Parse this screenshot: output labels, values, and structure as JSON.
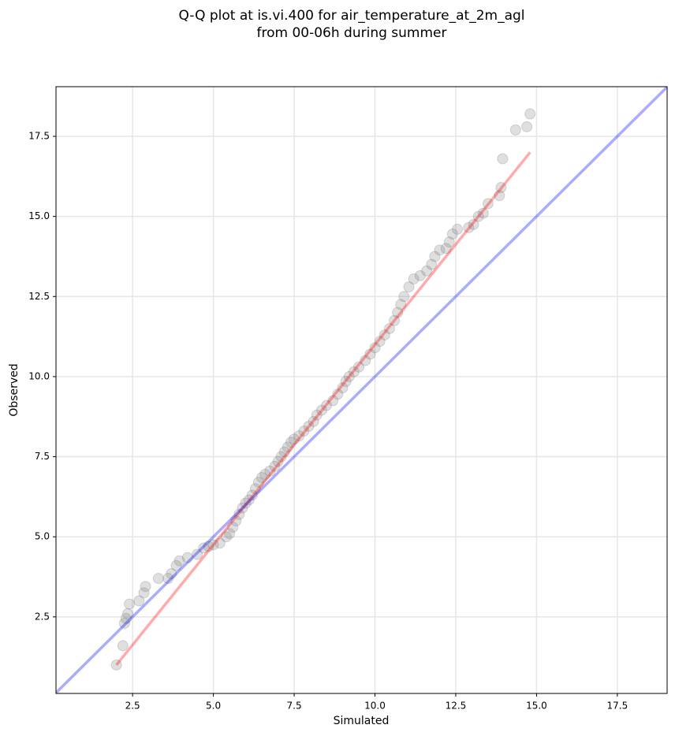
{
  "chart_data": {
    "type": "scatter",
    "title": [
      "Q-Q plot at is.vi.400 for air_temperature_at_2m_agl",
      "from 00-06h during summer"
    ],
    "x_label": "Simulated",
    "y_label": "Observed",
    "xlim": [
      0.13,
      19.04
    ],
    "ylim": [
      0.11,
      19.05
    ],
    "xticks": [
      2.5,
      {
        "value": 5,
        "label": "5.0"
      },
      7.5,
      {
        "value": 10,
        "label": "10.0"
      },
      12.5,
      {
        "value": 15,
        "label": "15.0"
      },
      17.5
    ],
    "yticks": [
      2.5,
      {
        "value": 5,
        "label": "5.0"
      },
      7.5,
      {
        "value": 10,
        "label": "10.0"
      },
      12.5,
      {
        "value": 15,
        "label": "15.0"
      },
      17.5
    ],
    "grid": true,
    "color": "#808080",
    "x": [
      2.0,
      2.2,
      2.25,
      2.3,
      2.35,
      2.4,
      2.7,
      2.85,
      2.9,
      3.3,
      3.6,
      3.7,
      3.85,
      3.95,
      4.2,
      4.5,
      4.7,
      4.85,
      5.0,
      5.2,
      5.4,
      5.5,
      5.6,
      5.7,
      5.8,
      5.9,
      6.0,
      6.1,
      6.2,
      6.3,
      6.4,
      6.5,
      6.6,
      6.75,
      6.9,
      7.0,
      7.1,
      7.2,
      7.3,
      7.4,
      7.5,
      7.65,
      7.8,
      7.95,
      8.1,
      8.2,
      8.35,
      8.5,
      8.7,
      8.85,
      9.0,
      9.1,
      9.2,
      9.35,
      9.5,
      9.7,
      9.85,
      10.0,
      10.15,
      10.3,
      10.45,
      10.6,
      10.7,
      10.8,
      10.9,
      11.05,
      11.2,
      11.4,
      11.6,
      11.75,
      11.85,
      12.0,
      12.2,
      12.3,
      12.4,
      12.55,
      12.9,
      13.05,
      13.2,
      13.35,
      13.5,
      13.85,
      13.9,
      13.95,
      14.35,
      14.7,
      14.8
    ],
    "values": [
      1.0,
      1.6,
      2.3,
      2.45,
      2.6,
      2.9,
      3.0,
      3.25,
      3.45,
      3.7,
      3.7,
      3.85,
      4.1,
      4.25,
      4.35,
      4.45,
      4.65,
      4.7,
      4.75,
      4.8,
      5.0,
      5.1,
      5.3,
      5.5,
      5.7,
      5.9,
      6.05,
      6.15,
      6.3,
      6.5,
      6.7,
      6.85,
      6.95,
      7.05,
      7.2,
      7.35,
      7.5,
      7.65,
      7.8,
      7.95,
      8.05,
      8.15,
      8.3,
      8.45,
      8.6,
      8.8,
      8.95,
      9.1,
      9.25,
      9.45,
      9.65,
      9.85,
      10.0,
      10.15,
      10.3,
      10.5,
      10.7,
      10.9,
      11.1,
      11.3,
      11.5,
      11.75,
      12.0,
      12.25,
      12.5,
      12.8,
      13.05,
      13.15,
      13.3,
      13.5,
      13.75,
      13.95,
      14.0,
      14.2,
      14.45,
      14.6,
      14.65,
      14.75,
      15.0,
      15.1,
      15.4,
      15.65,
      15.9,
      16.8,
      17.7,
      17.8,
      18.2
    ],
    "lines": [
      {
        "color": "#ff0000",
        "x": [
          2.0,
          14.8
        ],
        "y": [
          1.0,
          17.0
        ]
      },
      {
        "color": "#0000ff",
        "x": [
          0.13,
          19.04
        ],
        "y": [
          0.13,
          19.04
        ]
      }
    ]
  }
}
